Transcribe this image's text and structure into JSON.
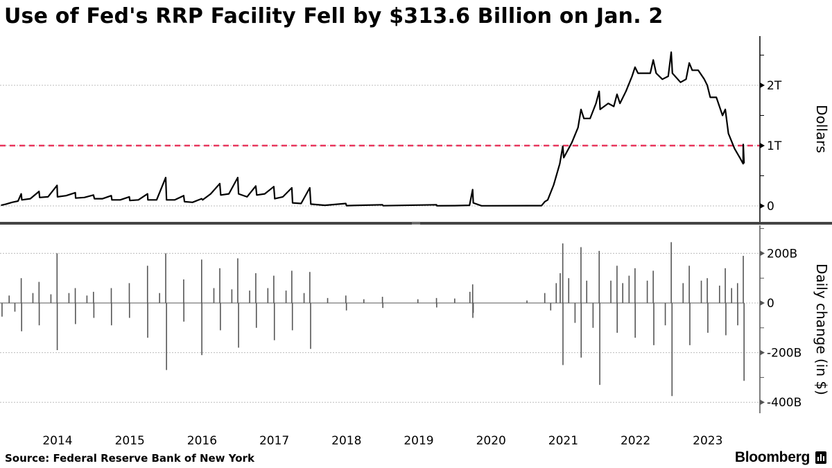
{
  "chart_data": [
    {
      "type": "line",
      "title": "Use of Fed's RRP Facility Fell by $313.6 Billion on Jan. 2",
      "ylabel": "Dollars",
      "unit": "trillions",
      "ylim": [
        -0.3,
        2.8
      ],
      "yticks": [
        {
          "value": 0,
          "label": "0"
        },
        {
          "value": 1,
          "label": "1T"
        },
        {
          "value": 2,
          "label": "2T"
        }
      ],
      "grid": true,
      "reference_line": {
        "value": 1,
        "color": "#e8365d",
        "style": "dashed"
      },
      "line_color": "#000000",
      "points": [
        [
          "2013-09-20",
          0.01
        ],
        [
          "2013-10-15",
          0.03
        ],
        [
          "2013-11-15",
          0.06
        ],
        [
          "2013-12-15",
          0.08
        ],
        [
          "2013-12-31",
          0.2
        ],
        [
          "2014-01-03",
          0.1
        ],
        [
          "2014-02-15",
          0.12
        ],
        [
          "2014-03-31",
          0.24
        ],
        [
          "2014-04-03",
          0.14
        ],
        [
          "2014-05-15",
          0.15
        ],
        [
          "2014-06-30",
          0.34
        ],
        [
          "2014-07-02",
          0.15
        ],
        [
          "2014-08-15",
          0.17
        ],
        [
          "2014-09-30",
          0.22
        ],
        [
          "2014-10-02",
          0.13
        ],
        [
          "2014-11-15",
          0.14
        ],
        [
          "2014-12-31",
          0.18
        ],
        [
          "2015-01-05",
          0.12
        ],
        [
          "2015-02-15",
          0.12
        ],
        [
          "2015-03-31",
          0.17
        ],
        [
          "2015-04-03",
          0.1
        ],
        [
          "2015-05-15",
          0.1
        ],
        [
          "2015-06-30",
          0.15
        ],
        [
          "2015-07-03",
          0.09
        ],
        [
          "2015-08-15",
          0.1
        ],
        [
          "2015-09-30",
          0.2
        ],
        [
          "2015-10-02",
          0.1
        ],
        [
          "2015-11-15",
          0.1
        ],
        [
          "2015-12-31",
          0.47
        ],
        [
          "2016-01-04",
          0.1
        ],
        [
          "2016-02-15",
          0.1
        ],
        [
          "2016-03-31",
          0.17
        ],
        [
          "2016-04-04",
          0.07
        ],
        [
          "2016-05-15",
          0.06
        ],
        [
          "2016-06-30",
          0.12
        ],
        [
          "2016-07-05",
          0.1
        ],
        [
          "2016-08-15",
          0.2
        ],
        [
          "2016-09-30",
          0.37
        ],
        [
          "2016-10-05",
          0.18
        ],
        [
          "2016-11-15",
          0.2
        ],
        [
          "2016-12-30",
          0.47
        ],
        [
          "2017-01-03",
          0.2
        ],
        [
          "2017-02-15",
          0.15
        ],
        [
          "2017-03-31",
          0.33
        ],
        [
          "2017-04-05",
          0.18
        ],
        [
          "2017-05-15",
          0.2
        ],
        [
          "2017-06-30",
          0.32
        ],
        [
          "2017-07-05",
          0.12
        ],
        [
          "2017-08-15",
          0.15
        ],
        [
          "2017-09-29",
          0.3
        ],
        [
          "2017-10-03",
          0.05
        ],
        [
          "2017-11-15",
          0.04
        ],
        [
          "2017-12-29",
          0.3
        ],
        [
          "2018-01-03",
          0.03
        ],
        [
          "2018-03-15",
          0.01
        ],
        [
          "2018-06-29",
          0.04
        ],
        [
          "2018-07-02",
          0.005
        ],
        [
          "2018-12-31",
          0.02
        ],
        [
          "2019-01-03",
          0.003
        ],
        [
          "2019-09-30",
          0.02
        ],
        [
          "2019-10-02",
          0.002
        ],
        [
          "2019-12-31",
          0.005
        ],
        [
          "2020-03-15",
          0.01
        ],
        [
          "2020-03-31",
          0.27
        ],
        [
          "2020-04-03",
          0.05
        ],
        [
          "2020-05-15",
          0.002
        ],
        [
          "2021-03-15",
          0.005
        ],
        [
          "2021-03-31",
          0.07
        ],
        [
          "2021-04-15",
          0.1
        ],
        [
          "2021-05-15",
          0.35
        ],
        [
          "2021-06-15",
          0.7
        ],
        [
          "2021-06-30",
          0.99
        ],
        [
          "2021-07-05",
          0.8
        ],
        [
          "2021-08-15",
          1.05
        ],
        [
          "2021-09-15",
          1.3
        ],
        [
          "2021-09-30",
          1.6
        ],
        [
          "2021-10-15",
          1.45
        ],
        [
          "2021-11-15",
          1.45
        ],
        [
          "2021-12-15",
          1.7
        ],
        [
          "2021-12-31",
          1.9
        ],
        [
          "2022-01-05",
          1.6
        ],
        [
          "2022-02-15",
          1.7
        ],
        [
          "2022-03-15",
          1.65
        ],
        [
          "2022-03-31",
          1.85
        ],
        [
          "2022-04-15",
          1.7
        ],
        [
          "2022-05-15",
          1.9
        ],
        [
          "2022-06-15",
          2.15
        ],
        [
          "2022-06-30",
          2.3
        ],
        [
          "2022-07-15",
          2.2
        ],
        [
          "2022-08-15",
          2.2
        ],
        [
          "2022-09-15",
          2.2
        ],
        [
          "2022-09-30",
          2.42
        ],
        [
          "2022-10-15",
          2.2
        ],
        [
          "2022-11-15",
          2.1
        ],
        [
          "2022-12-15",
          2.15
        ],
        [
          "2022-12-30",
          2.55
        ],
        [
          "2023-01-05",
          2.2
        ],
        [
          "2023-02-15",
          2.05
        ],
        [
          "2023-03-15",
          2.1
        ],
        [
          "2023-03-31",
          2.37
        ],
        [
          "2023-04-15",
          2.25
        ],
        [
          "2023-05-15",
          2.25
        ],
        [
          "2023-06-15",
          2.1
        ],
        [
          "2023-06-30",
          2.0
        ],
        [
          "2023-07-15",
          1.8
        ],
        [
          "2023-08-15",
          1.8
        ],
        [
          "2023-09-15",
          1.5
        ],
        [
          "2023-09-29",
          1.6
        ],
        [
          "2023-10-15",
          1.2
        ],
        [
          "2023-11-15",
          0.95
        ],
        [
          "2023-12-15",
          0.78
        ],
        [
          "2023-12-28",
          0.7
        ],
        [
          "2023-12-29",
          1.02
        ],
        [
          "2024-01-02",
          0.705
        ]
      ]
    },
    {
      "type": "bar",
      "ylabel": "Daily change (in $)",
      "unit": "billions",
      "ylim": [
        -450,
        300
      ],
      "yticks": [
        {
          "value": 200,
          "label": "200B"
        },
        {
          "value": 0,
          "label": "0"
        },
        {
          "value": -200,
          "label": "-200B"
        },
        {
          "value": -400,
          "label": "-400B"
        }
      ],
      "grid": true,
      "bar_color": "#555555",
      "bars": [
        [
          "2013-09-25",
          -55
        ],
        [
          "2013-10-31",
          30
        ],
        [
          "2013-11-29",
          -35
        ],
        [
          "2013-12-31",
          100
        ],
        [
          "2014-01-02",
          -114
        ],
        [
          "2014-02-28",
          40
        ],
        [
          "2014-03-31",
          85
        ],
        [
          "2014-04-01",
          -90
        ],
        [
          "2014-05-30",
          35
        ],
        [
          "2014-06-30",
          200
        ],
        [
          "2014-07-01",
          -190
        ],
        [
          "2014-08-29",
          40
        ],
        [
          "2014-09-30",
          60
        ],
        [
          "2014-10-01",
          -85
        ],
        [
          "2014-11-28",
          30
        ],
        [
          "2014-12-31",
          45
        ],
        [
          "2015-01-02",
          -60
        ],
        [
          "2015-03-31",
          60
        ],
        [
          "2015-04-01",
          -90
        ],
        [
          "2015-06-30",
          80
        ],
        [
          "2015-07-01",
          -60
        ],
        [
          "2015-09-30",
          150
        ],
        [
          "2015-10-01",
          -140
        ],
        [
          "2015-11-30",
          40
        ],
        [
          "2015-12-31",
          200
        ],
        [
          "2016-01-04",
          -270
        ],
        [
          "2016-03-31",
          95
        ],
        [
          "2016-04-01",
          -75
        ],
        [
          "2016-06-30",
          175
        ],
        [
          "2016-07-01",
          -210
        ],
        [
          "2016-08-31",
          60
        ],
        [
          "2016-09-30",
          140
        ],
        [
          "2016-10-03",
          -110
        ],
        [
          "2016-11-30",
          55
        ],
        [
          "2016-12-30",
          180
        ],
        [
          "2017-01-03",
          -180
        ],
        [
          "2017-02-28",
          50
        ],
        [
          "2017-03-31",
          120
        ],
        [
          "2017-04-03",
          -100
        ],
        [
          "2017-05-31",
          60
        ],
        [
          "2017-06-30",
          110
        ],
        [
          "2017-07-03",
          -150
        ],
        [
          "2017-08-31",
          50
        ],
        [
          "2017-09-29",
          130
        ],
        [
          "2017-10-02",
          -110
        ],
        [
          "2017-11-30",
          40
        ],
        [
          "2017-12-29",
          125
        ],
        [
          "2018-01-02",
          -185
        ],
        [
          "2018-03-29",
          20
        ],
        [
          "2018-06-29",
          30
        ],
        [
          "2018-07-02",
          -30
        ],
        [
          "2018-09-28",
          15
        ],
        [
          "2018-12-31",
          25
        ],
        [
          "2019-01-02",
          -20
        ],
        [
          "2019-06-28",
          15
        ],
        [
          "2019-09-30",
          20
        ],
        [
          "2019-10-01",
          -18
        ],
        [
          "2019-12-31",
          18
        ],
        [
          "2020-03-17",
          45
        ],
        [
          "2020-03-31",
          75
        ],
        [
          "2020-04-01",
          -60
        ],
        [
          "2020-04-03",
          -40
        ],
        [
          "2020-12-31",
          10
        ],
        [
          "2021-03-31",
          40
        ],
        [
          "2021-04-30",
          -30
        ],
        [
          "2021-05-28",
          80
        ],
        [
          "2021-06-17",
          120
        ],
        [
          "2021-06-30",
          240
        ],
        [
          "2021-07-01",
          -250
        ],
        [
          "2021-07-30",
          100
        ],
        [
          "2021-08-31",
          -80
        ],
        [
          "2021-09-30",
          225
        ],
        [
          "2021-10-01",
          -220
        ],
        [
          "2021-10-29",
          90
        ],
        [
          "2021-11-30",
          -100
        ],
        [
          "2021-12-31",
          210
        ],
        [
          "2022-01-03",
          -330
        ],
        [
          "2022-02-28",
          90
        ],
        [
          "2022-03-31",
          150
        ],
        [
          "2022-04-01",
          -120
        ],
        [
          "2022-04-29",
          80
        ],
        [
          "2022-05-31",
          110
        ],
        [
          "2022-06-30",
          140
        ],
        [
          "2022-07-01",
          -140
        ],
        [
          "2022-08-31",
          90
        ],
        [
          "2022-09-30",
          130
        ],
        [
          "2022-10-03",
          -170
        ],
        [
          "2022-11-30",
          -90
        ],
        [
          "2022-12-30",
          245
        ],
        [
          "2023-01-03",
          -375
        ],
        [
          "2023-02-28",
          80
        ],
        [
          "2023-03-31",
          150
        ],
        [
          "2023-04-03",
          -170
        ],
        [
          "2023-05-31",
          90
        ],
        [
          "2023-06-30",
          100
        ],
        [
          "2023-07-03",
          -120
        ],
        [
          "2023-08-31",
          70
        ],
        [
          "2023-09-29",
          140
        ],
        [
          "2023-10-02",
          -130
        ],
        [
          "2023-10-31",
          60
        ],
        [
          "2023-11-30",
          80
        ],
        [
          "2023-12-01",
          -90
        ],
        [
          "2023-12-29",
          190
        ],
        [
          "2024-01-02",
          -313.6
        ]
      ]
    }
  ],
  "x_axis": {
    "ticks": [
      "2014",
      "2015",
      "2016",
      "2017",
      "2018",
      "2019",
      "2020",
      "2021",
      "2022",
      "2023"
    ]
  },
  "footer": {
    "source": "Source: Federal Reserve Bank of New York",
    "brand": "Bloomberg"
  }
}
